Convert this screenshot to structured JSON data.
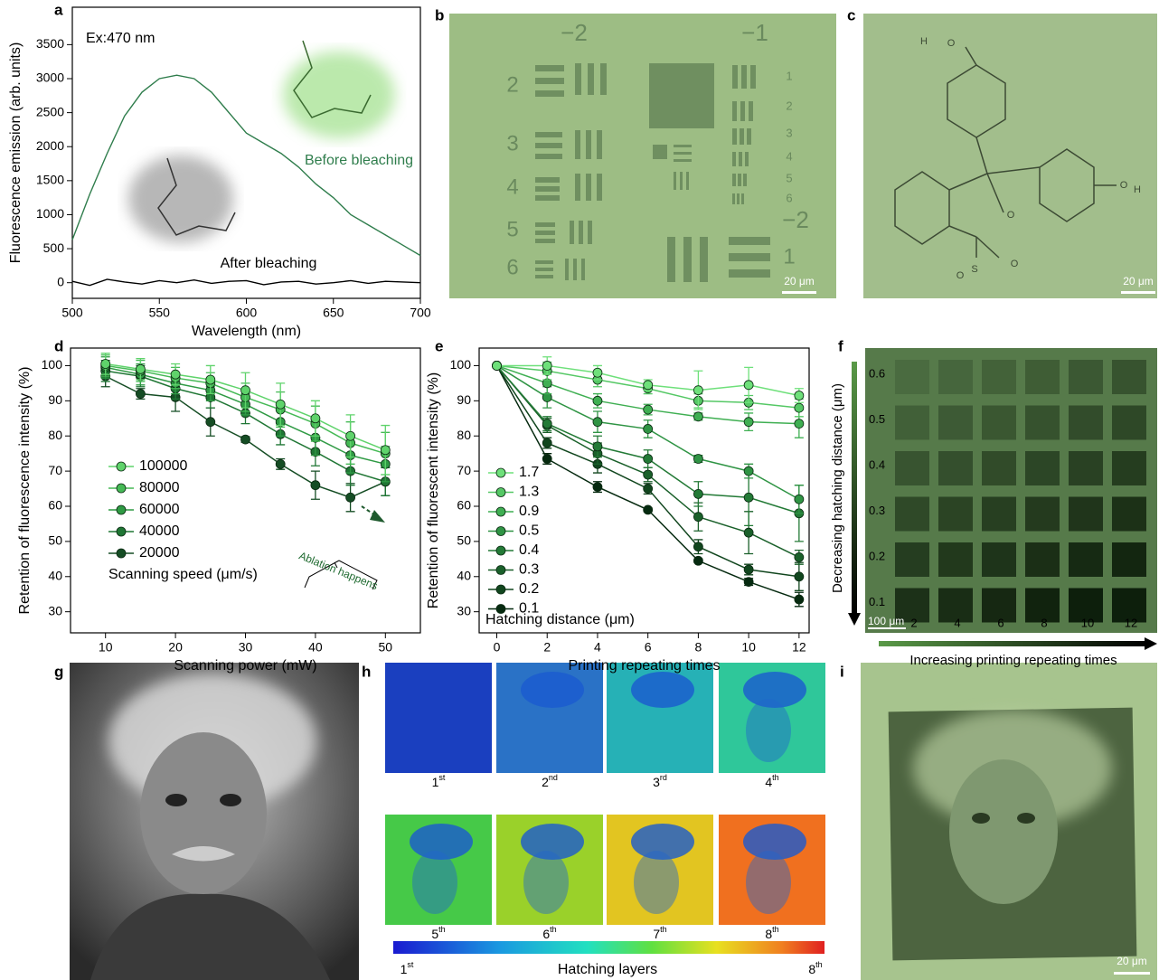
{
  "panel_letters": [
    "a",
    "b",
    "c",
    "d",
    "e",
    "f",
    "g",
    "h",
    "i"
  ],
  "chart_data": [
    {
      "type": "line",
      "xlabel": "Wavelength (nm)",
      "ylabel": "Fluorescence emission (arb. units)",
      "annotation": "Ex:470 nm",
      "xlim": [
        500,
        700
      ],
      "ylim": [
        -230,
        4050
      ],
      "xticks": [
        500,
        550,
        600,
        650,
        700
      ],
      "yticks": [
        0,
        500,
        1000,
        1500,
        2000,
        2500,
        3000,
        3500
      ],
      "x": [
        500,
        510,
        520,
        530,
        540,
        550,
        560,
        570,
        580,
        590,
        600,
        610,
        620,
        630,
        640,
        650,
        660,
        670,
        680,
        690,
        700
      ],
      "series": [
        {
          "name": "Before bleaching",
          "color": "#2f7d4c",
          "values": [
            630,
            1300,
            1900,
            2450,
            2800,
            3000,
            3050,
            3000,
            2800,
            2500,
            2200,
            2050,
            1900,
            1700,
            1450,
            1250,
            1000,
            850,
            700,
            550,
            400
          ]
        },
        {
          "name": "After bleaching",
          "color": "#000000",
          "values": [
            20,
            -40,
            50,
            10,
            -20,
            30,
            0,
            40,
            -10,
            20,
            30,
            -30,
            10,
            20,
            -20,
            0,
            30,
            -10,
            20,
            10,
            0
          ]
        }
      ]
    },
    {
      "type": "line",
      "markers": true,
      "xlabel": "Scanning power (mW)",
      "ylabel": "Retention of fluorescence intensity (%)",
      "legend_title": "Scanning speed (μm/s)",
      "annotation": "Ablation happens",
      "xlim": [
        5,
        55
      ],
      "ylim": [
        24,
        105
      ],
      "xticks": [
        10,
        20,
        30,
        40,
        50
      ],
      "yticks": [
        30,
        40,
        50,
        60,
        70,
        80,
        90,
        100
      ],
      "x": [
        10,
        15,
        20,
        25,
        30,
        35,
        40,
        45,
        50
      ],
      "series": [
        {
          "name": "100000",
          "color": "#5fd36b",
          "values": [
            100.5,
            99,
            97.5,
            96,
            93,
            89,
            85,
            80,
            76
          ],
          "errors": [
            3,
            3,
            3,
            4,
            5,
            6,
            5,
            6,
            7
          ]
        },
        {
          "name": "80000",
          "color": "#45b955",
          "values": [
            100,
            98.5,
            96.5,
            95,
            91,
            87.5,
            83.5,
            78,
            75
          ],
          "errors": [
            3,
            3,
            3,
            3,
            4,
            5,
            5,
            6,
            6
          ]
        },
        {
          "name": "60000",
          "color": "#2f9a44",
          "values": [
            99.5,
            97.5,
            95,
            93,
            89,
            84,
            79.5,
            74.5,
            72
          ],
          "errors": [
            3,
            3,
            3,
            3,
            3,
            4,
            5,
            5,
            5
          ]
        },
        {
          "name": "40000",
          "color": "#1f7634",
          "values": [
            98.5,
            97,
            93.5,
            91,
            86.5,
            80.5,
            75.5,
            70,
            67
          ],
          "errors": [
            3,
            3,
            3,
            3,
            3,
            3,
            4,
            4,
            4
          ]
        },
        {
          "name": "20000",
          "color": "#154d24",
          "values": [
            97,
            92,
            91,
            84,
            79,
            72,
            66,
            62.5,
            67
          ],
          "errors": [
            3,
            1.5,
            4,
            4,
            0.8,
            1.5,
            4,
            4,
            4
          ]
        }
      ]
    },
    {
      "type": "line",
      "markers": true,
      "xlabel": "Printing repeating times",
      "ylabel": "Retention of fluorescent intensity (%)",
      "legend_title": "Hatching distance (μm)",
      "xlim": [
        -0.7,
        12.4
      ],
      "ylim": [
        24,
        105
      ],
      "xticks": [
        0,
        2,
        4,
        6,
        8,
        10,
        12
      ],
      "yticks": [
        30,
        40,
        50,
        60,
        70,
        80,
        90,
        100
      ],
      "x": [
        0,
        2,
        4,
        6,
        8,
        10,
        12
      ],
      "series": [
        {
          "name": "1.7",
          "color": "#6ee07a",
          "values": [
            100,
            100,
            98,
            94.5,
            93,
            94.5,
            91.5
          ],
          "errors": [
            0.5,
            2.5,
            2,
            1.5,
            5.5,
            5,
            2
          ]
        },
        {
          "name": "1.3",
          "color": "#55c865",
          "values": [
            100,
            98.5,
            96,
            93.5,
            90,
            89.5,
            88
          ],
          "errors": [
            0.5,
            2.5,
            2,
            1.5,
            2,
            2,
            2.5
          ]
        },
        {
          "name": "0.9",
          "color": "#3faf52",
          "values": [
            100,
            95,
            90,
            87.5,
            85.5,
            84,
            83.5
          ],
          "errors": [
            0.5,
            3,
            2,
            1.5,
            1,
            2.5,
            4
          ]
        },
        {
          "name": "0.5",
          "color": "#2f9444",
          "values": [
            100,
            91,
            84,
            82,
            73.5,
            70,
            62
          ],
          "errors": [
            0.5,
            3,
            3,
            2.5,
            1,
            2,
            4
          ]
        },
        {
          "name": "0.4",
          "color": "#237a36",
          "values": [
            100,
            83.5,
            77,
            73.5,
            63.5,
            62.5,
            58
          ],
          "errors": [
            0.5,
            2,
            3,
            2.5,
            3.5,
            8,
            8
          ]
        },
        {
          "name": "0.3",
          "color": "#1a602a",
          "values": [
            100,
            83,
            75,
            69,
            57,
            52.5,
            45.5
          ],
          "errors": [
            0.5,
            2,
            3,
            2,
            4,
            6,
            2
          ]
        },
        {
          "name": "0.2",
          "color": "#11461e",
          "values": [
            100,
            78,
            72,
            65,
            48.5,
            42,
            40
          ],
          "errors": [
            0.5,
            1.5,
            2.5,
            1.5,
            2,
            1.5,
            4
          ]
        },
        {
          "name": "0.1",
          "color": "#062a10",
          "values": [
            100,
            73.5,
            65.5,
            59,
            44.5,
            38.5,
            33.5
          ],
          "errors": [
            0.5,
            1.5,
            1.5,
            0.5,
            0.5,
            1,
            2
          ]
        }
      ]
    }
  ],
  "panel_b": {
    "group_labels": [
      "−2",
      "−1",
      "2",
      "3",
      "4",
      "5",
      "6",
      "1",
      "2",
      "3",
      "4",
      "5",
      "6",
      "−2",
      "1"
    ],
    "scale_bar": "20 μm"
  },
  "panel_c": {
    "atoms": [
      "H",
      "O",
      "O",
      "H",
      "O",
      "S",
      "O",
      "O"
    ],
    "scale_bar": "20 μm"
  },
  "panel_f": {
    "row_labels": [
      "0.6",
      "0.5",
      "0.4",
      "0.3",
      "0.2",
      "0.1"
    ],
    "col_labels": [
      "2",
      "4",
      "6",
      "8",
      "10",
      "12"
    ],
    "scale_bar": "100 μm",
    "y_label": "Decreasing hatching distance (μm)",
    "x_label": "Increasing printing repeating times"
  },
  "panel_h": {
    "layers": [
      {
        "number": "1",
        "suffix": "st"
      },
      {
        "number": "2",
        "suffix": "nd"
      },
      {
        "number": "3",
        "suffix": "rd"
      },
      {
        "number": "4",
        "suffix": "th"
      },
      {
        "number": "5",
        "suffix": "th"
      },
      {
        "number": "6",
        "suffix": "th"
      },
      {
        "number": "7",
        "suffix": "th"
      },
      {
        "number": "8",
        "suffix": "th"
      }
    ],
    "colorbar": {
      "start": {
        "number": "1",
        "suffix": "st"
      },
      "label": "Hatching layers",
      "end": {
        "number": "8",
        "suffix": "th"
      }
    }
  },
  "panel_i": {
    "scale_bar": "20 μm"
  }
}
